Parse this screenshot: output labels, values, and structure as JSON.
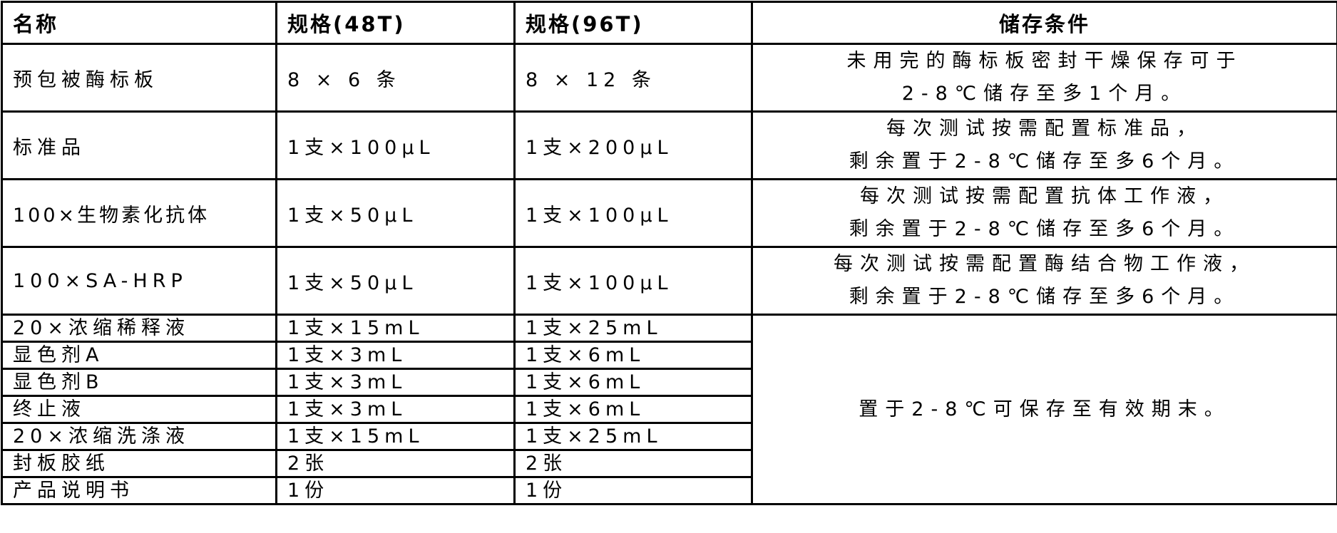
{
  "headers": {
    "name": "名称",
    "spec48": "规格(48T)",
    "spec96": "规格(96T)",
    "storage": "储存条件"
  },
  "rows": [
    {
      "name": "预包被酶标板",
      "spec48": "8 × 6 条",
      "spec96": "8 × 12 条",
      "storage": [
        "未用完的酶标板密封干燥保存可于",
        "2-8℃储存至多1个月。"
      ]
    },
    {
      "name": "标准品",
      "spec48": "1支×100μL",
      "spec96": "1支×200μL",
      "storage": [
        "每次测试按需配置标准品，",
        "剩余置于2-8℃储存至多6个月。"
      ]
    },
    {
      "name": "100×生物素化抗体",
      "spec48": "1支×50μL",
      "spec96": "1支×100μL",
      "storage": [
        "每次测试按需配置抗体工作液，",
        "剩余置于2-8℃储存至多6个月。"
      ]
    },
    {
      "name": "100×SA-HRP",
      "spec48": "1支×50μL",
      "spec96": "1支×100μL",
      "storage": [
        "每次测试按需配置酶结合物工作液，",
        "剩余置于2-8℃储存至多6个月。"
      ]
    },
    {
      "name": "20×浓缩稀释液",
      "spec48": "1支×15mL",
      "spec96": "1支×25mL"
    },
    {
      "name": "显色剂A",
      "spec48": "1支×3mL",
      "spec96": "1支×6mL"
    },
    {
      "name": "显色剂B",
      "spec48": "1支×3mL",
      "spec96": "1支×6mL"
    },
    {
      "name": "终止液",
      "spec48": "1支×3mL",
      "spec96": "1支×6mL"
    },
    {
      "name": "20×浓缩洗涤液",
      "spec48": "1支×15mL",
      "spec96": "1支×25mL"
    },
    {
      "name": "封板胶纸",
      "spec48": "2张",
      "spec96": "2张"
    },
    {
      "name": "产品说明书",
      "spec48": "1份",
      "spec96": "1份"
    }
  ],
  "shared_storage": "置于2-8℃可保存至有效期末。"
}
